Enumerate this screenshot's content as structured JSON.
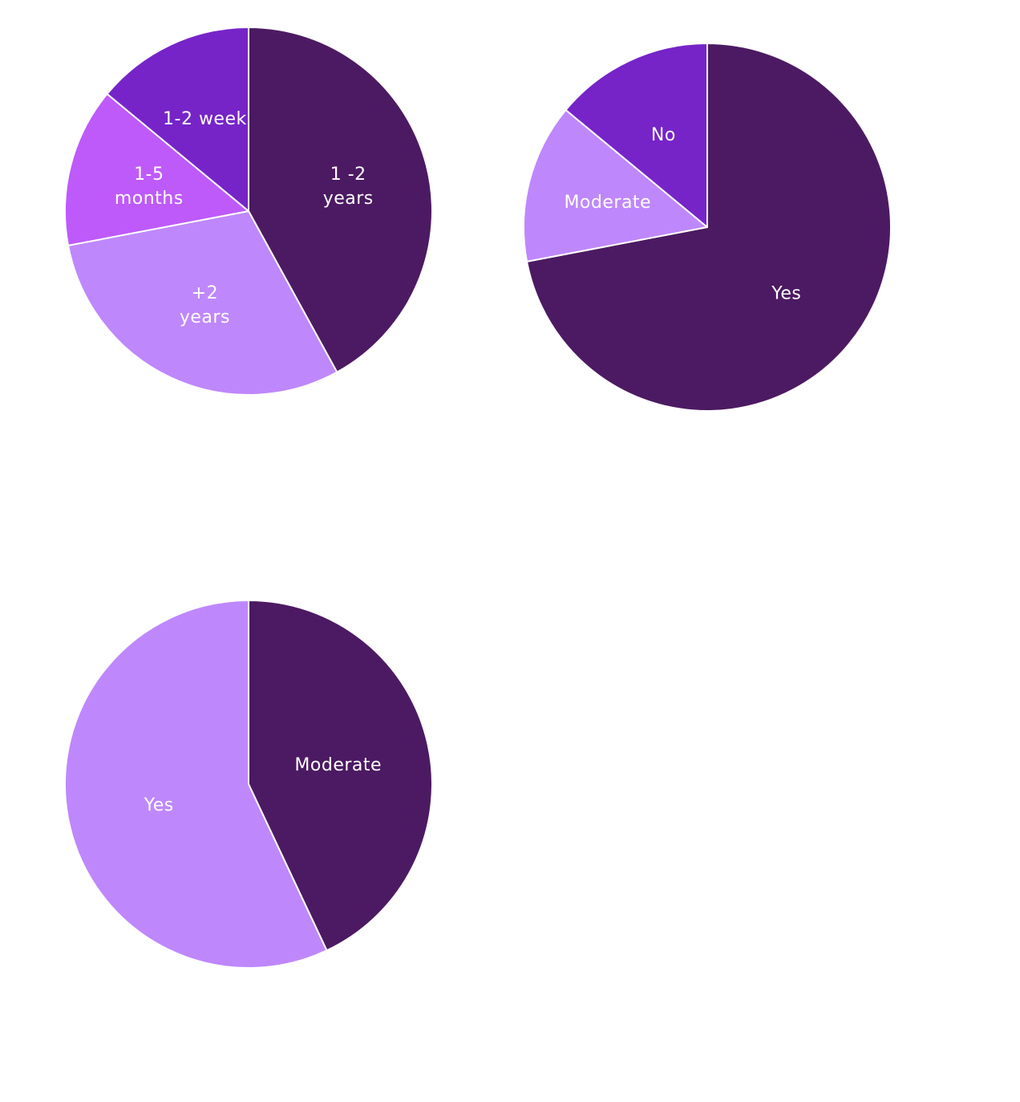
{
  "chart_data": [
    {
      "type": "pie",
      "title": "",
      "slices": [
        {
          "label": "1 -2\nyears",
          "value": 42,
          "color": "#4C1A62"
        },
        {
          "label": "+2\nyears",
          "value": 30,
          "color": "#BF87FC"
        },
        {
          "label": "1-5\nmonths",
          "value": 14,
          "color": "#BE5AFA"
        },
        {
          "label": "1-2 week",
          "value": 14,
          "color": "#7624C8"
        }
      ]
    },
    {
      "type": "pie",
      "title": "",
      "slices": [
        {
          "label": "Yes",
          "value": 72,
          "color": "#4C1A62"
        },
        {
          "label": "Moderate",
          "value": 14,
          "color": "#BF87FC"
        },
        {
          "label": "No",
          "value": 14,
          "color": "#7624C8"
        }
      ]
    },
    {
      "type": "pie",
      "title": "",
      "slices": [
        {
          "label": "Moderate",
          "value": 43,
          "color": "#4C1A62"
        },
        {
          "label": "Yes",
          "value": 57,
          "color": "#BF87FC"
        }
      ]
    }
  ]
}
